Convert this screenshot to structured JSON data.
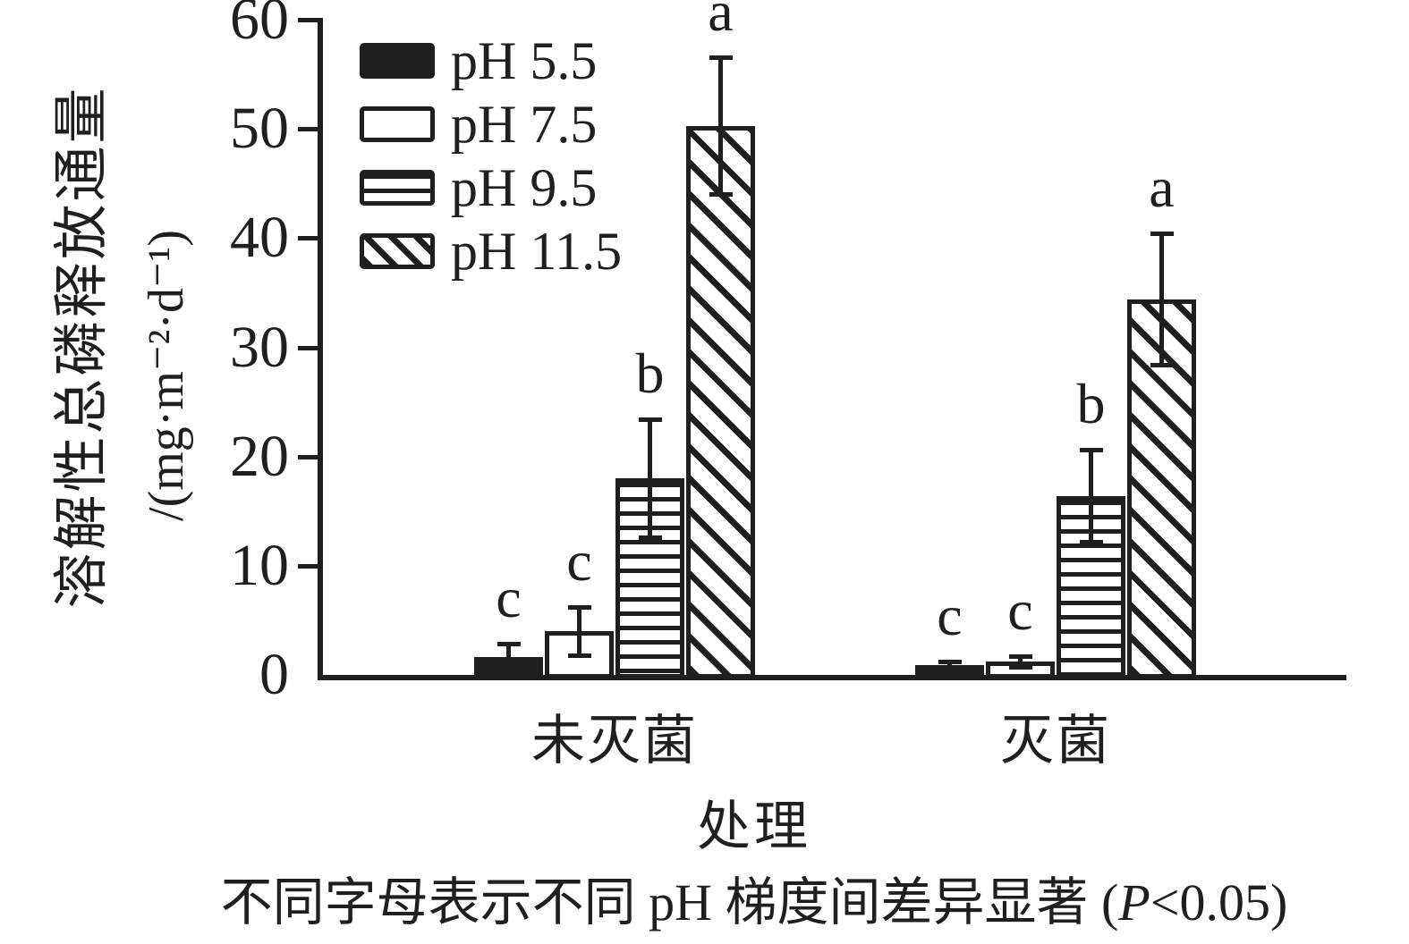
{
  "colors": {
    "ink": "#1f1f20",
    "background": "#ffffff"
  },
  "y_axis": {
    "title_line1": "溶解性总磷释放通量",
    "title_line2": "/(mg·m⁻²·d⁻¹)"
  },
  "x_axis": {
    "title": "处理"
  },
  "caption": {
    "prefix": "不同字母表示不同 pH 梯度间差异显著 (",
    "italic": "P",
    "suffix": "<0.05)"
  },
  "chart_data": {
    "type": "bar",
    "categories": [
      "未灭菌",
      "灭菌"
    ],
    "series": [
      {
        "name": "pH 5.5",
        "pattern": "solid",
        "values": [
          1.6,
          0.9
        ],
        "errors": [
          1.3,
          0.3
        ],
        "letters": [
          "c",
          "c"
        ]
      },
      {
        "name": "pH 7.5",
        "pattern": "open",
        "values": [
          4.0,
          1.2
        ],
        "errors": [
          2.2,
          0.5
        ],
        "letters": [
          "c",
          "c"
        ]
      },
      {
        "name": "pH 9.5",
        "pattern": "hlines",
        "values": [
          18.0,
          16.4
        ],
        "errors": [
          5.4,
          4.2
        ],
        "letters": [
          "b",
          "b"
        ]
      },
      {
        "name": "pH 11.5",
        "pattern": "diag",
        "values": [
          50.3,
          34.4
        ],
        "errors": [
          6.3,
          6.0
        ],
        "letters": [
          "a",
          "a"
        ]
      }
    ],
    "title": "",
    "xlabel": "处理",
    "ylabel": "溶解性总磷释放通量 /(mg·m⁻²·d⁻¹)",
    "yticks": [
      0,
      10,
      20,
      30,
      40,
      50,
      60
    ],
    "ylim": [
      0,
      60
    ],
    "grid": false,
    "legend_position": "top-left",
    "error_bars": true,
    "annotation": "不同字母表示不同 pH 梯度间差异显著 (P<0.05)"
  }
}
